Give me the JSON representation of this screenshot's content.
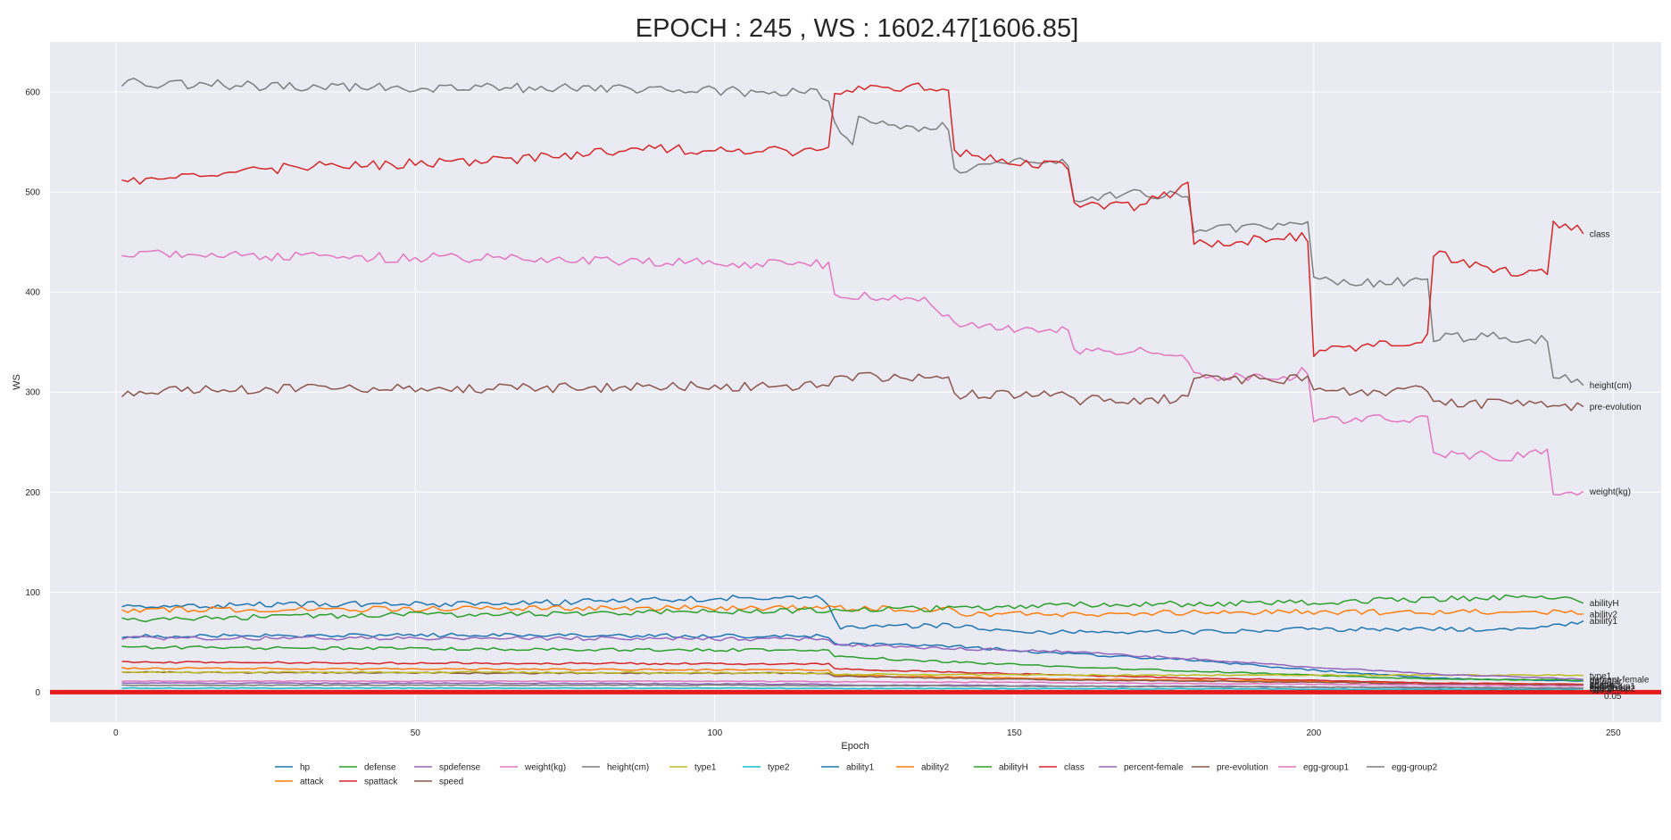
{
  "chart_data": {
    "type": "line",
    "title": "EPOCH : 245 , WS : 1602.47[1606.85]",
    "xlabel": "Epoch",
    "ylabel": "WS",
    "xlim": [
      -11,
      258
    ],
    "ylim": [
      -30,
      650
    ],
    "x_ticks": [
      0,
      50,
      100,
      150,
      200,
      250
    ],
    "y_ticks": [
      0,
      100,
      200,
      300,
      400,
      500,
      600
    ],
    "grid": true,
    "legend_placement": "bottom-center",
    "reference_line": {
      "y": 0,
      "color": "#e41a1c"
    },
    "threshold_label": "0.05",
    "series": [
      {
        "name": "hp",
        "color": "#1f77b4",
        "values": [
          [
            1,
            56
          ],
          [
            60,
            57
          ],
          [
            118,
            56
          ],
          [
            120,
            48
          ],
          [
            140,
            46
          ],
          [
            160,
            38
          ],
          [
            180,
            32
          ],
          [
            200,
            22
          ],
          [
            220,
            14
          ],
          [
            245,
            11
          ]
        ]
      },
      {
        "name": "attack",
        "color": "#ff7f0e",
        "values": [
          [
            1,
            24
          ],
          [
            60,
            23
          ],
          [
            118,
            22
          ],
          [
            120,
            17
          ],
          [
            140,
            15
          ],
          [
            160,
            13
          ],
          [
            180,
            12
          ],
          [
            200,
            11
          ],
          [
            220,
            9
          ],
          [
            245,
            8
          ]
        ]
      },
      {
        "name": "defense",
        "color": "#2ca02c",
        "values": [
          [
            1,
            45
          ],
          [
            60,
            43
          ],
          [
            118,
            42
          ],
          [
            120,
            36
          ],
          [
            140,
            30
          ],
          [
            160,
            25
          ],
          [
            180,
            21
          ],
          [
            200,
            17
          ],
          [
            220,
            13
          ],
          [
            245,
            12
          ]
        ]
      },
      {
        "name": "spattack",
        "color": "#d62728",
        "values": [
          [
            1,
            30
          ],
          [
            60,
            29
          ],
          [
            118,
            28
          ],
          [
            120,
            23
          ],
          [
            140,
            20
          ],
          [
            160,
            17
          ],
          [
            180,
            14
          ],
          [
            200,
            12
          ],
          [
            220,
            9
          ],
          [
            245,
            8
          ]
        ]
      },
      {
        "name": "spdefense",
        "color": "#9467bd",
        "values": [
          [
            1,
            9
          ],
          [
            60,
            9
          ],
          [
            118,
            8
          ],
          [
            120,
            7
          ],
          [
            140,
            7
          ],
          [
            160,
            6
          ],
          [
            180,
            6
          ],
          [
            200,
            5
          ],
          [
            220,
            5
          ],
          [
            245,
            4
          ]
        ]
      },
      {
        "name": "speed",
        "color": "#8c564b",
        "values": [
          [
            1,
            20
          ],
          [
            60,
            19
          ],
          [
            118,
            19
          ],
          [
            120,
            16
          ],
          [
            140,
            14
          ],
          [
            160,
            12
          ],
          [
            180,
            11
          ],
          [
            200,
            10
          ],
          [
            220,
            8
          ],
          [
            245,
            7
          ]
        ]
      },
      {
        "name": "weight(kg)",
        "color": "#e377c2",
        "values": [
          [
            1,
            438
          ],
          [
            30,
            435
          ],
          [
            60,
            434
          ],
          [
            90,
            430
          ],
          [
            118,
            428
          ],
          [
            120,
            398
          ],
          [
            135,
            395
          ],
          [
            140,
            370
          ],
          [
            150,
            363
          ],
          [
            159,
            362
          ],
          [
            160,
            342
          ],
          [
            175,
            340
          ],
          [
            179,
            330
          ],
          [
            180,
            316
          ],
          [
            195,
            314
          ],
          [
            198,
            320
          ],
          [
            200,
            272
          ],
          [
            215,
            274
          ],
          [
            219,
            274
          ],
          [
            220,
            237
          ],
          [
            235,
            236
          ],
          [
            239,
            240
          ],
          [
            240,
            202
          ],
          [
            245,
            200
          ]
        ]
      },
      {
        "name": "height(cm)",
        "color": "#7f7f7f",
        "values": [
          [
            1,
            610
          ],
          [
            30,
            605
          ],
          [
            60,
            604
          ],
          [
            90,
            603
          ],
          [
            118,
            598
          ],
          [
            122,
            550
          ],
          [
            124,
            575
          ],
          [
            130,
            562
          ],
          [
            138,
            565
          ],
          [
            140,
            520
          ],
          [
            150,
            530
          ],
          [
            159,
            530
          ],
          [
            160,
            490
          ],
          [
            170,
            500
          ],
          [
            179,
            495
          ],
          [
            180,
            462
          ],
          [
            190,
            465
          ],
          [
            199,
            472
          ],
          [
            200,
            410
          ],
          [
            210,
            410
          ],
          [
            219,
            410
          ],
          [
            220,
            355
          ],
          [
            230,
            355
          ],
          [
            239,
            352
          ],
          [
            240,
            318
          ],
          [
            244,
            310
          ],
          [
            245,
            310
          ]
        ]
      },
      {
        "name": "type1",
        "color": "#bcbd22",
        "values": [
          [
            1,
            20
          ],
          [
            60,
            20
          ],
          [
            118,
            19
          ],
          [
            120,
            18
          ],
          [
            160,
            17
          ],
          [
            200,
            17
          ],
          [
            245,
            17
          ]
        ]
      },
      {
        "name": "type2",
        "color": "#17becf",
        "values": [
          [
            1,
            4
          ],
          [
            100,
            4
          ],
          [
            200,
            3
          ],
          [
            245,
            3
          ]
        ]
      },
      {
        "name": "ability1",
        "color": "#1f77b4",
        "values": [
          [
            1,
            85
          ],
          [
            30,
            88
          ],
          [
            60,
            88
          ],
          [
            90,
            92
          ],
          [
            110,
            95
          ],
          [
            118,
            94
          ],
          [
            121,
            65
          ],
          [
            140,
            67
          ],
          [
            150,
            60
          ],
          [
            160,
            60
          ],
          [
            180,
            60
          ],
          [
            200,
            63
          ],
          [
            220,
            63
          ],
          [
            235,
            62
          ],
          [
            245,
            70
          ]
        ]
      },
      {
        "name": "ability2",
        "color": "#ff7f0e",
        "values": [
          [
            1,
            82
          ],
          [
            30,
            83
          ],
          [
            60,
            83
          ],
          [
            90,
            84
          ],
          [
            118,
            84
          ],
          [
            140,
            83
          ],
          [
            141,
            78
          ],
          [
            160,
            78
          ],
          [
            180,
            80
          ],
          [
            200,
            80
          ],
          [
            220,
            80
          ],
          [
            245,
            80
          ]
        ]
      },
      {
        "name": "abilityH",
        "color": "#2ca02c",
        "values": [
          [
            1,
            72
          ],
          [
            30,
            76
          ],
          [
            60,
            78
          ],
          [
            90,
            80
          ],
          [
            118,
            82
          ],
          [
            140,
            84
          ],
          [
            160,
            88
          ],
          [
            180,
            88
          ],
          [
            200,
            90
          ],
          [
            220,
            93
          ],
          [
            240,
            96
          ],
          [
            245,
            91
          ]
        ]
      },
      {
        "name": "class",
        "color": "#d62728",
        "values": [
          [
            1,
            510
          ],
          [
            30,
            525
          ],
          [
            60,
            530
          ],
          [
            90,
            543
          ],
          [
            118,
            540
          ],
          [
            120,
            600
          ],
          [
            138,
            605
          ],
          [
            140,
            540
          ],
          [
            150,
            530
          ],
          [
            159,
            525
          ],
          [
            160,
            490
          ],
          [
            170,
            485
          ],
          [
            179,
            505
          ],
          [
            180,
            448
          ],
          [
            190,
            452
          ],
          [
            199,
            455
          ],
          [
            200,
            340
          ],
          [
            210,
            345
          ],
          [
            219,
            355
          ],
          [
            220,
            440
          ],
          [
            230,
            420
          ],
          [
            238,
            420
          ],
          [
            240,
            470
          ],
          [
            245,
            462
          ]
        ]
      },
      {
        "name": "percent-female",
        "color": "#9467bd",
        "values": [
          [
            1,
            54
          ],
          [
            60,
            54
          ],
          [
            118,
            53
          ],
          [
            120,
            47
          ],
          [
            140,
            44
          ],
          [
            160,
            40
          ],
          [
            180,
            33
          ],
          [
            200,
            25
          ],
          [
            220,
            18
          ],
          [
            245,
            13
          ]
        ]
      },
      {
        "name": "pre-evolution",
        "color": "#8c564b",
        "values": [
          [
            1,
            300
          ],
          [
            30,
            303
          ],
          [
            60,
            303
          ],
          [
            90,
            305
          ],
          [
            118,
            307
          ],
          [
            120,
            315
          ],
          [
            138,
            315
          ],
          [
            140,
            298
          ],
          [
            150,
            298
          ],
          [
            159,
            300
          ],
          [
            160,
            292
          ],
          [
            170,
            293
          ],
          [
            179,
            292
          ],
          [
            180,
            313
          ],
          [
            199,
            313
          ],
          [
            200,
            300
          ],
          [
            210,
            300
          ],
          [
            219,
            302
          ],
          [
            220,
            288
          ],
          [
            230,
            288
          ],
          [
            240,
            286
          ],
          [
            245,
            285
          ]
        ]
      },
      {
        "name": "egg-group1",
        "color": "#e377c2",
        "values": [
          [
            1,
            11
          ],
          [
            100,
            11
          ],
          [
            140,
            10
          ],
          [
            200,
            8
          ],
          [
            245,
            6
          ]
        ]
      },
      {
        "name": "egg-group2",
        "color": "#7f7f7f",
        "values": [
          [
            1,
            7
          ],
          [
            100,
            7
          ],
          [
            200,
            5
          ],
          [
            245,
            4
          ]
        ]
      }
    ]
  }
}
